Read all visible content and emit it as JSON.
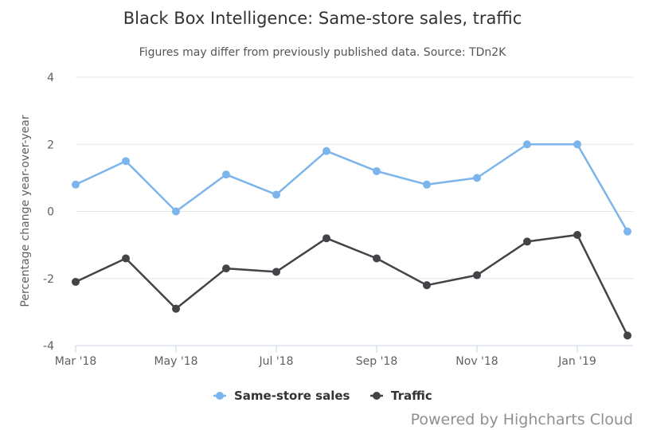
{
  "chart_data": {
    "type": "line",
    "title": "Black Box Intelligence: Same-store sales, traffic",
    "subtitle": "Figures may differ from previously published data. Source: TDn2K",
    "ylabel": "Percentage change year-over-year",
    "ylim": [
      -4,
      4
    ],
    "yticks": [
      "4",
      "2",
      "0",
      "-2",
      "-4"
    ],
    "ytick_values": [
      4,
      2,
      0,
      -2,
      -4
    ],
    "categories": [
      "Mar '18",
      "Apr '18",
      "May '18",
      "Jun '18",
      "Jul '18",
      "Aug '18",
      "Sep '18",
      "Oct '18",
      "Nov '18",
      "Dec '18",
      "Jan '19",
      "Feb '19"
    ],
    "xtick_labels": [
      "Mar '18",
      "May '18",
      "Jul '18",
      "Sep '18",
      "Nov '18",
      "Jan '19"
    ],
    "xtick_indices": [
      0,
      2,
      4,
      6,
      8,
      10
    ],
    "series": [
      {
        "name": "Same-store sales",
        "color": "#7cb5ec",
        "values": [
          0.8,
          1.5,
          0.0,
          1.1,
          0.5,
          1.8,
          1.2,
          0.8,
          1.0,
          2.0,
          2.0,
          -0.6
        ]
      },
      {
        "name": "Traffic",
        "color": "#434348",
        "values": [
          -2.1,
          -1.4,
          -2.9,
          -1.7,
          -1.8,
          -0.8,
          -1.4,
          -2.2,
          -1.9,
          -0.9,
          -0.7,
          -3.7
        ]
      }
    ],
    "grid": true,
    "legend": "bottom"
  },
  "credits": "Powered by Highcharts Cloud"
}
